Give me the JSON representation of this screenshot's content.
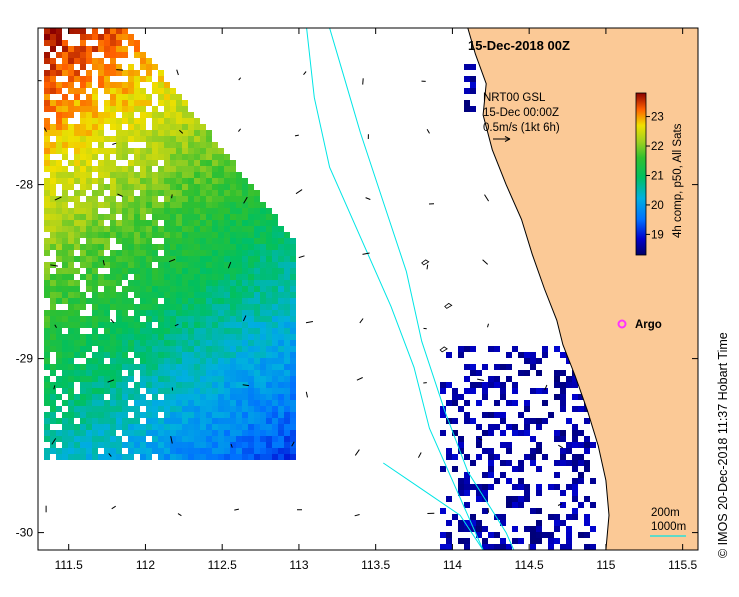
{
  "map": {
    "title": "15-Dec-2018 00Z",
    "product": {
      "line1": "NRT00 GSL",
      "line2": "15-Dec 00:00Z",
      "line3": "0.5m/s (1kt 6h)"
    },
    "colorbar": {
      "label": "4h comp, p50, All Sats",
      "ticks": [
        "23",
        "22",
        "21",
        "20",
        "19"
      ],
      "range": [
        18.3,
        23.8
      ]
    },
    "marker": {
      "label": "Argo",
      "lon": 115.1,
      "lat": -28.85,
      "color": "#ff33ff"
    },
    "contour_legend": [
      "200m",
      "1000m"
    ],
    "credit": "© IMOS 20-Dec-2018 11:37 Hobart Time",
    "axes": {
      "x_ticks": [
        "111.5",
        "112",
        "112.5",
        "113",
        "113.5",
        "114",
        "114.5",
        "115",
        "115.5"
      ],
      "y_ticks": [
        "-28",
        "-29",
        "-30"
      ],
      "lon_range": [
        111.3,
        115.6
      ],
      "lat_range": [
        -30.1,
        -27.1
      ]
    },
    "colors": {
      "land": "#fbc996",
      "coastline": "#000000",
      "isobath": "#00e5e5",
      "background": "#ffffff"
    }
  }
}
